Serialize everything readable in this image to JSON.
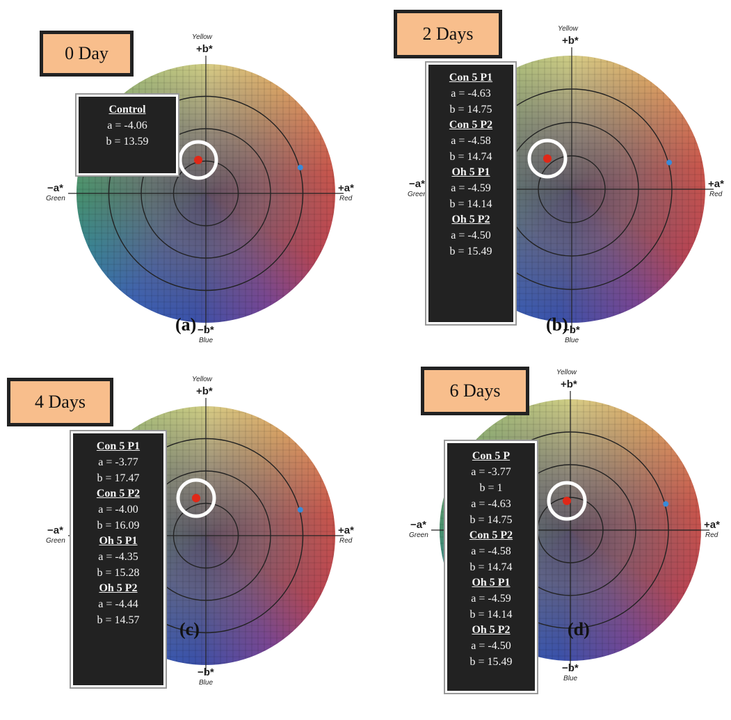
{
  "axis_labels": {
    "yellow": "Yellow",
    "plus_b": "+b*",
    "minus_a": "−a*",
    "green": "Green",
    "plus_a": "+a*",
    "red": "Red",
    "minus_b": "−b*",
    "blue": "Blue"
  },
  "panels": [
    {
      "title": "0 Day",
      "label": "(a)",
      "entries": [
        {
          "name": "Control",
          "lines": [
            "a = -4.06",
            "b = 13.59"
          ]
        }
      ]
    },
    {
      "title": "2 Days",
      "label": "(b)",
      "entries": [
        {
          "name": "Con 5 P1",
          "lines": [
            "a = -4.63",
            "b = 14.75"
          ]
        },
        {
          "name": "Con 5 P2",
          "lines": [
            "a = -4.58",
            "b = 14.74"
          ]
        },
        {
          "name": "Oh 5 P1",
          "lines": [
            "a = -4.59",
            "b = 14.14"
          ]
        },
        {
          "name": "Oh 5 P2",
          "lines": [
            "a = -4.50",
            "b = 15.49"
          ]
        }
      ]
    },
    {
      "title": "4 Days",
      "label": "(c)",
      "entries": [
        {
          "name": "Con 5 P1",
          "lines": [
            "a = -3.77",
            "b = 17.47"
          ]
        },
        {
          "name": "Con 5 P2",
          "lines": [
            "a = -4.00",
            "b = 16.09"
          ]
        },
        {
          "name": "Oh 5 P1",
          "lines": [
            "a = -4.35",
            "b = 15.28"
          ]
        },
        {
          "name": "Oh 5 P2",
          "lines": [
            "a = -4.44",
            "b = 14.57"
          ]
        }
      ]
    },
    {
      "title": "6 Days",
      "label": "(d)",
      "entries": [
        {
          "name": "Con 5 P",
          "lines": [
            "a = -3.77",
            "b = 1",
            "a = -4.63",
            "b = 14.75"
          ]
        },
        {
          "name": "Con 5 P2",
          "lines": [
            "a = -4.58",
            "b = 14.74"
          ]
        },
        {
          "name": "Oh 5 P1",
          "lines": [
            "a = -4.59",
            "b = 14.14"
          ]
        },
        {
          "name": "Oh 5 P2",
          "lines": [
            "a = -4.50",
            "b = 15.49"
          ]
        }
      ]
    }
  ]
}
